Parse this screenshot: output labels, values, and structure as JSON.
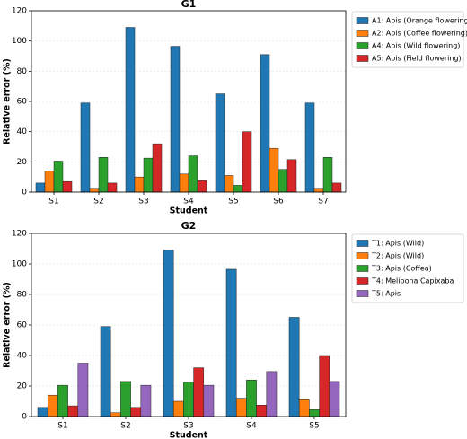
{
  "chart_data": [
    {
      "type": "bar",
      "title": "G1",
      "x_label": "Student",
      "y_label": "Relative error (%)",
      "categories": [
        "S1",
        "S2",
        "S3",
        "S4",
        "S5",
        "S6",
        "S7"
      ],
      "series": [
        {
          "name": "A1: Apis (Orange flowering)",
          "color": "#1f77b4",
          "values": [
            6,
            59,
            109,
            96.5,
            65,
            91,
            59
          ]
        },
        {
          "name": "A2: Apis (Coffee flowering)",
          "color": "#ff7f0e",
          "values": [
            14,
            2.5,
            10,
            12,
            11,
            29,
            2.5
          ]
        },
        {
          "name": "A4: Apis (Wild flowering)",
          "color": "#2ca02c",
          "values": [
            20.5,
            23,
            22.5,
            24,
            4.5,
            15,
            23
          ]
        },
        {
          "name": "A5: Apis (Field flowering)",
          "color": "#d62728",
          "values": [
            7,
            6,
            32,
            7.5,
            40,
            21.5,
            6
          ]
        }
      ],
      "ylim": [
        0,
        120
      ],
      "yticks": [
        0,
        20,
        40,
        60,
        80,
        100,
        120
      ],
      "grid": true,
      "legend": "outside-right"
    },
    {
      "type": "bar",
      "title": "G2",
      "x_label": "Student",
      "y_label": "Relative error (%)",
      "categories": [
        "S1",
        "S2",
        "S3",
        "S4",
        "S5"
      ],
      "series": [
        {
          "name": "T1: Apis (Wild)",
          "color": "#1f77b4",
          "values": [
            6,
            59,
            109,
            96.5,
            65
          ]
        },
        {
          "name": "T2: Apis (Wild)",
          "color": "#ff7f0e",
          "values": [
            14,
            2.5,
            10,
            12,
            11
          ]
        },
        {
          "name": "T3: Apis (Coffea)",
          "color": "#2ca02c",
          "values": [
            20.5,
            23,
            22.5,
            24,
            4.5
          ]
        },
        {
          "name": "T4: Melipona Capixaba",
          "color": "#d62728",
          "values": [
            7,
            6,
            32,
            7.5,
            40
          ]
        },
        {
          "name": "T5: Apis",
          "color": "#9467bd",
          "values": [
            35,
            20.5,
            20.5,
            29.5,
            23
          ]
        }
      ],
      "ylim": [
        0,
        120
      ],
      "yticks": [
        0,
        20,
        40,
        60,
        80,
        100,
        120
      ],
      "grid": true,
      "legend": "outside-right"
    }
  ]
}
